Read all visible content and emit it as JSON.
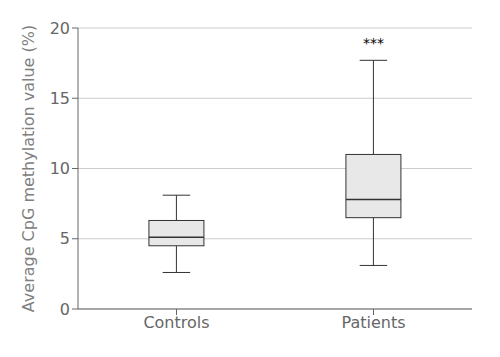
{
  "chart_data": {
    "type": "box",
    "categories": [
      "Controls",
      "Patients"
    ],
    "boxes": [
      {
        "whislo": 2.6,
        "q1": 4.5,
        "med": 5.1,
        "q3": 6.3,
        "whishi": 8.1
      },
      {
        "whislo": 3.1,
        "q1": 6.5,
        "med": 7.8,
        "q3": 11.0,
        "whishi": 17.7
      }
    ],
    "ylabel": "Average CpG methylation value (%)",
    "ylim": [
      0,
      20
    ],
    "yticks": [
      0,
      5,
      10,
      15,
      20
    ],
    "grid": true,
    "color": "#e8e8e8",
    "annotations": [
      {
        "text": "***",
        "x": "Patients",
        "y": 18.2
      }
    ]
  }
}
